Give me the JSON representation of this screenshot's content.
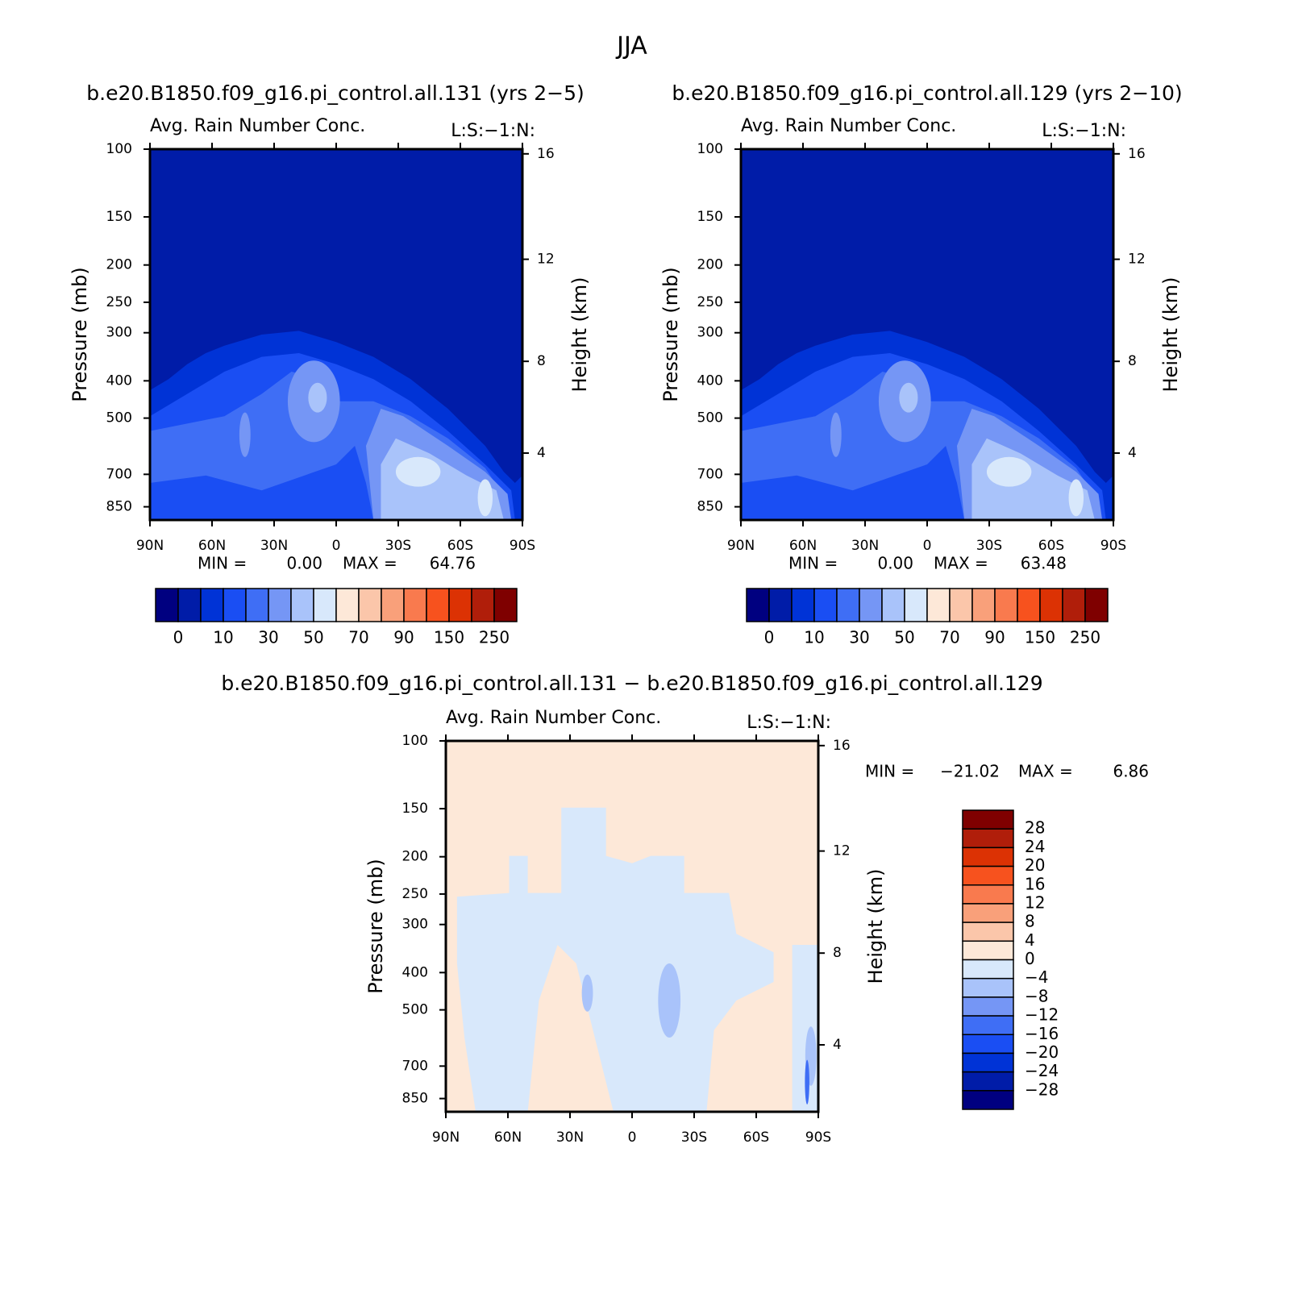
{
  "title": "JJA",
  "chart_data": [
    {
      "type": "contour",
      "title": "b.e20.B1850.f09_g16.pi_control.all.131 (yrs 2−5)",
      "subtitle_left": "Avg. Rain Number Conc.",
      "subtitle_right": "L:S:−1:N:",
      "ylabel": "Pressure (mb)",
      "y2label": "Height (km)",
      "xlim": [
        90,
        -90
      ],
      "xticks": [
        {
          "value": 90,
          "label": "90N"
        },
        {
          "value": 60,
          "label": "60N"
        },
        {
          "value": 30,
          "label": "30N"
        },
        0,
        {
          "value": -30,
          "label": "30S"
        },
        {
          "value": -60,
          "label": "60S"
        },
        {
          "value": -90,
          "label": "90S"
        }
      ],
      "ylim": [
        100,
        920
      ],
      "ylog": true,
      "yticks": [
        100,
        150,
        200,
        250,
        300,
        400,
        500,
        700,
        850
      ],
      "y2ticks": [
        16,
        12,
        8,
        4
      ],
      "stats": [
        {
          "name": "MIN =",
          "value": 0,
          "label": "0.00"
        },
        {
          "name": "MAX =",
          "value": 64.76
        }
      ],
      "colorbar": {
        "orientation": "horizontal",
        "colors": [
          "#000080",
          "#001ca8",
          "#0033d6",
          "#1a4ef3",
          "#3f6ef5",
          "#7596f5",
          "#a9c3fa",
          "#d8e8fb",
          "#fde8d8",
          "#fbc6aa",
          "#f9a07a",
          "#f97a4e",
          "#f7521e",
          "#dc3204",
          "#b01e0a",
          "#7f0000"
        ],
        "labels": [
          0,
          10,
          30,
          50,
          70,
          90,
          150,
          250
        ]
      }
    },
    {
      "type": "contour",
      "title": "b.e20.B1850.f09_g16.pi_control.all.129 (yrs 2−10)",
      "subtitle_left": "Avg. Rain Number Conc.",
      "subtitle_right": "L:S:−1:N:",
      "ylabel": "Pressure (mb)",
      "y2label": "Height (km)",
      "xlim": [
        90,
        -90
      ],
      "xticks": [
        {
          "value": 90,
          "label": "90N"
        },
        {
          "value": 60,
          "label": "60N"
        },
        {
          "value": 30,
          "label": "30N"
        },
        0,
        {
          "value": -30,
          "label": "30S"
        },
        {
          "value": -60,
          "label": "60S"
        },
        {
          "value": -90,
          "label": "90S"
        }
      ],
      "ylim": [
        100,
        920
      ],
      "ylog": true,
      "yticks": [
        100,
        150,
        200,
        250,
        300,
        400,
        500,
        700,
        850
      ],
      "y2ticks": [
        16,
        12,
        8,
        4
      ],
      "stats": [
        {
          "name": "MIN =",
          "value": 0,
          "label": "0.00"
        },
        {
          "name": "MAX =",
          "value": 63.48
        }
      ],
      "colorbar": {
        "orientation": "horizontal",
        "colors": [
          "#000080",
          "#001ca8",
          "#0033d6",
          "#1a4ef3",
          "#3f6ef5",
          "#7596f5",
          "#a9c3fa",
          "#d8e8fb",
          "#fde8d8",
          "#fbc6aa",
          "#f9a07a",
          "#f97a4e",
          "#f7521e",
          "#dc3204",
          "#b01e0a",
          "#7f0000"
        ],
        "labels": [
          0,
          10,
          30,
          50,
          70,
          90,
          150,
          250
        ]
      }
    },
    {
      "type": "contour-diff",
      "title": "b.e20.B1850.f09_g16.pi_control.all.131 − b.e20.B1850.f09_g16.pi_control.all.129",
      "subtitle_left": "Avg. Rain Number Conc.",
      "subtitle_right": "L:S:−1:N:",
      "ylabel": "Pressure (mb)",
      "y2label": "Height (km)",
      "xlim": [
        90,
        -90
      ],
      "xticks": [
        {
          "value": 90,
          "label": "90N"
        },
        {
          "value": 60,
          "label": "60N"
        },
        {
          "value": 30,
          "label": "30N"
        },
        0,
        {
          "value": -30,
          "label": "30S"
        },
        {
          "value": -60,
          "label": "60S"
        },
        {
          "value": -90,
          "label": "90S"
        }
      ],
      "ylim": [
        100,
        920
      ],
      "ylog": true,
      "yticks": [
        100,
        150,
        200,
        250,
        300,
        400,
        500,
        700,
        850
      ],
      "y2ticks": [
        16,
        12,
        8,
        4
      ],
      "stats": [
        {
          "name": "MIN =",
          "value": -21.02,
          "label": "−21.02"
        },
        {
          "name": "MAX =",
          "value": 6.86
        }
      ],
      "colorbar": {
        "orientation": "vertical",
        "colors": [
          "#7f0000",
          "#b01e0a",
          "#dc3204",
          "#f7521e",
          "#f97a4e",
          "#f9a07a",
          "#fbc6aa",
          "#fde8d8",
          "#d8e8fb",
          "#a9c3fa",
          "#7596f5",
          "#3f6ef5",
          "#1a4ef3",
          "#0033d6",
          "#001ca8",
          "#000080"
        ],
        "labels": [
          28,
          24,
          20,
          16,
          12,
          8,
          4,
          0,
          {
            "value": -4,
            "label": "−4"
          },
          {
            "value": -8,
            "label": "−8"
          },
          {
            "value": -12,
            "label": "−12"
          },
          {
            "value": -16,
            "label": "−16"
          },
          {
            "value": -20,
            "label": "−20"
          },
          {
            "value": -24,
            "label": "−24"
          },
          {
            "value": -28,
            "label": "−28"
          }
        ]
      }
    }
  ]
}
